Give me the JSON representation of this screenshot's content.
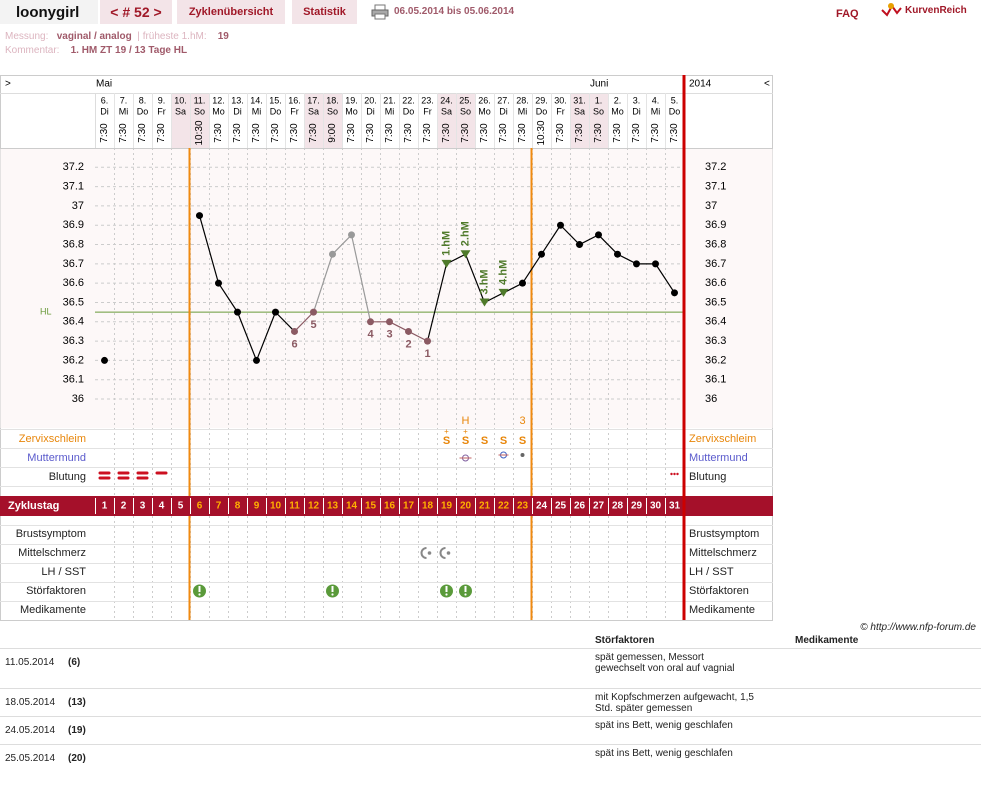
{
  "header": {
    "user": "loonygirl",
    "cycle": "< # 52 >",
    "nav": [
      "Zyklenübersicht",
      "Statistik"
    ],
    "date_range": "06.05.2014 bis 05.06.2014",
    "faq": "FAQ",
    "logo": "KurvenReich",
    "measurement_label": "Messung:",
    "measurement": "vaginal / analog",
    "separator": "|",
    "earliest_label": "früheste 1.hM:",
    "earliest": 19,
    "comment_label": "Kommentar:",
    "comment": "1. HM ZT 19 / 13 Tage HL"
  },
  "chart_data": {
    "type": "line",
    "nav_left": ">",
    "nav_right": "<",
    "year": "2014",
    "months": [
      "Mai",
      null,
      null,
      null,
      null,
      null,
      null,
      null,
      null,
      null,
      null,
      null,
      null,
      null,
      null,
      null,
      null,
      null,
      null,
      null,
      null,
      null,
      null,
      null,
      null,
      null,
      "Juni",
      null,
      null,
      null,
      null
    ],
    "dates": [
      "6.",
      "7.",
      "8.",
      "9.",
      "10.",
      "11.",
      "12.",
      "13.",
      "14.",
      "15.",
      "16.",
      "17.",
      "18.",
      "19.",
      "20.",
      "21.",
      "22.",
      "23.",
      "24.",
      "25.",
      "26.",
      "27.",
      "28.",
      "29.",
      "30.",
      "31.",
      "1.",
      "2.",
      "3.",
      "4.",
      "5."
    ],
    "weekdays": [
      "Di",
      "Mi",
      "Do",
      "Fr",
      "Sa",
      "So",
      "Mo",
      "Di",
      "Mi",
      "Do",
      "Fr",
      "Sa",
      "So",
      "Mo",
      "Di",
      "Mi",
      "Do",
      "Fr",
      "Sa",
      "So",
      "Mo",
      "Di",
      "Mi",
      "Do",
      "Fr",
      "Sa",
      "So",
      "Mo",
      "Di",
      "Mi",
      "Do"
    ],
    "times": [
      "7:30",
      "7:30",
      "7:30",
      "7:30",
      null,
      "10:30",
      "7:30",
      "7:30",
      "7:30",
      "7:30",
      "7:30",
      "7:30",
      "9:00",
      "7:30",
      "7:30",
      "7:30",
      "7:30",
      "7:30",
      "7:30",
      "7:30",
      "7:30",
      "7:30",
      "7:30",
      "10:30",
      "7:30",
      "7:30",
      "7:30",
      "7:30",
      "7:30",
      "7:30",
      "7:30"
    ],
    "values": [
      36.2,
      null,
      null,
      null,
      null,
      36.95,
      36.6,
      36.45,
      36.2,
      36.45,
      36.35,
      36.45,
      36.75,
      36.85,
      36.4,
      36.4,
      36.35,
      36.3,
      36.7,
      36.75,
      36.5,
      36.55,
      36.6,
      36.75,
      36.9,
      36.8,
      36.85,
      36.75,
      36.7,
      36.7,
      36.55
    ],
    "point_colors": [
      "#000000",
      null,
      null,
      null,
      null,
      "#000000",
      "#000000",
      "#000000",
      "#000000",
      "#000000",
      "#8b5a63",
      "#8b5a63",
      "#999999",
      "#999999",
      "#8b5a63",
      "#8b5a63",
      "#8b5a63",
      "#8b5a63",
      "#4f7a2a",
      "#4f7a2a",
      "#4f7a2a",
      "#4f7a2a",
      "#000000",
      "#000000",
      "#000000",
      "#000000",
      "#000000",
      "#000000",
      "#000000",
      "#000000",
      "#000000"
    ],
    "count_labels": [
      null,
      null,
      null,
      null,
      null,
      null,
      null,
      null,
      null,
      null,
      "6",
      "5",
      null,
      null,
      "4",
      "3",
      "2",
      "1",
      null,
      null,
      null,
      null,
      null,
      null,
      null,
      null,
      null,
      null,
      null,
      null,
      null
    ],
    "hm_labels": [
      null,
      null,
      null,
      null,
      null,
      null,
      null,
      null,
      null,
      null,
      null,
      null,
      null,
      null,
      null,
      null,
      null,
      null,
      "1.hM",
      "2.hM",
      "3.hM",
      "4.hM",
      null,
      null,
      null,
      null,
      null,
      null,
      null,
      null,
      null
    ],
    "ylim": [
      35.85,
      37.3
    ],
    "yticks": [
      36,
      36.1,
      36.2,
      36.3,
      36.4,
      36.5,
      36.6,
      36.7,
      36.8,
      36.9,
      37,
      37.1,
      37.2
    ],
    "grid": true,
    "hl": {
      "label": "HL",
      "value": 36.45
    },
    "cervix_top": [
      null,
      null,
      null,
      null,
      null,
      null,
      null,
      null,
      null,
      null,
      null,
      null,
      null,
      null,
      null,
      null,
      null,
      null,
      null,
      "H",
      null,
      null,
      "3",
      null,
      null,
      null,
      null,
      null,
      null,
      null,
      null
    ],
    "cervix_plus": [
      null,
      null,
      null,
      null,
      null,
      null,
      null,
      null,
      null,
      null,
      null,
      null,
      null,
      null,
      null,
      null,
      null,
      null,
      "+",
      "+",
      null,
      null,
      null,
      null,
      null,
      null,
      null,
      null,
      null,
      null,
      null
    ],
    "cervix": [
      null,
      null,
      null,
      null,
      null,
      null,
      null,
      null,
      null,
      null,
      null,
      null,
      null,
      null,
      null,
      null,
      null,
      null,
      "S",
      "S",
      "S",
      "S",
      "S",
      null,
      null,
      null,
      null,
      null,
      null,
      null,
      null
    ],
    "cycle_day_label": "Zyklustag",
    "cycle_days": [
      1,
      2,
      3,
      4,
      5,
      6,
      7,
      8,
      9,
      10,
      11,
      12,
      13,
      14,
      15,
      16,
      17,
      18,
      19,
      20,
      21,
      22,
      23,
      24,
      25,
      26,
      27,
      28,
      29,
      30,
      31
    ],
    "row_labels": {
      "cervix": "Zervixschleim",
      "cervix_os": "Muttermund",
      "bleeding": "Blutung",
      "breast": "Brustsymptom",
      "pain": "Mittelschmerz",
      "lh": "LH / SST",
      "disturb": "Störfaktoren",
      "meds": "Medikamente"
    }
  },
  "footer": {
    "credit": "© http://www.nfp-forum.de",
    "columns": [
      "Störfaktoren",
      "Medikamente"
    ],
    "rows": [
      [
        "11.05.2014",
        "(6)",
        "spät gemessen, Messort gewechselt von oral auf vagnial"
      ],
      [
        "18.05.2014",
        "(13)",
        "mit Kopfschmerzen aufgewacht, 1,5 Std. später gemessen"
      ],
      [
        "24.05.2014",
        "(19)",
        "spät ins Bett, wenig geschlafen"
      ],
      [
        "25.05.2014",
        "(20)",
        "spät ins Bett, wenig geschlafen"
      ]
    ]
  }
}
